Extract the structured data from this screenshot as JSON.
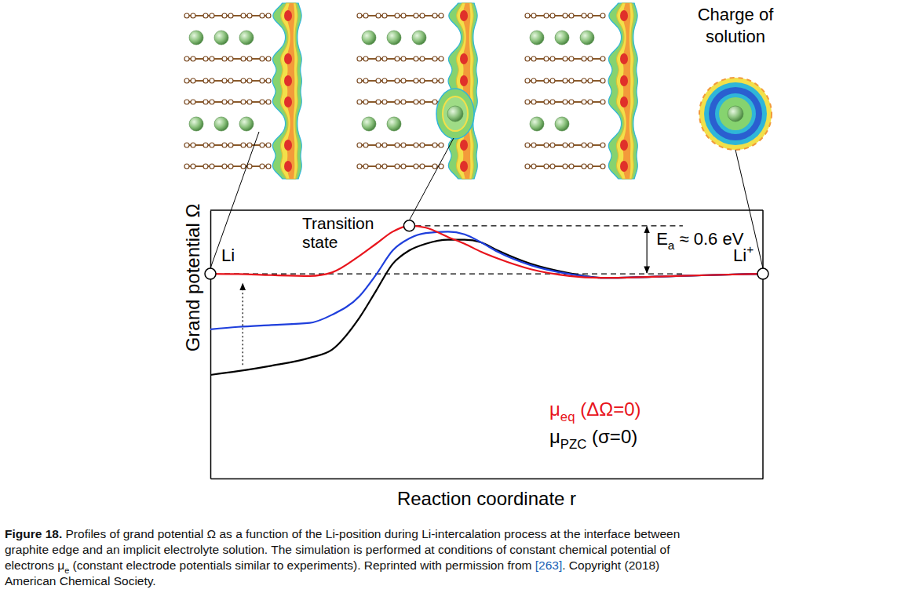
{
  "chart_data": {
    "type": "line",
    "x_label": "Reaction coordinate r",
    "y_label": "Grand potential Ω",
    "xlim": [
      0,
      1
    ],
    "ylim": [
      0,
      1
    ],
    "tick_labels": false,
    "grid": false,
    "legend": "lower right",
    "x": [
      0,
      0.05,
      0.11,
      0.18,
      0.22,
      0.27,
      0.3,
      0.33,
      0.36,
      0.39,
      0.43,
      0.46,
      0.49,
      0.52,
      0.58,
      0.65,
      0.71,
      0.8,
      0.9,
      1
    ],
    "series": [
      {
        "name": [
          "μ",
          {
            "sub": "eq"
          },
          " (ΔΩ=0)"
        ],
        "color": "#e8141c",
        "values": [
          0.763,
          0.762,
          0.758,
          0.755,
          0.768,
          0.83,
          0.875,
          0.92,
          0.942,
          0.935,
          0.9,
          0.875,
          0.845,
          0.82,
          0.78,
          0.755,
          0.748,
          0.752,
          0.758,
          0.763
        ]
      },
      {
        "color": "#1f3fdc",
        "values": [
          0.556,
          0.565,
          0.572,
          0.58,
          0.61,
          0.68,
          0.76,
          0.85,
          0.895,
          0.915,
          0.92,
          0.91,
          0.88,
          0.845,
          0.795,
          0.762,
          0.748,
          0.752,
          0.758,
          0.763
        ]
      },
      {
        "name": [
          "μ",
          {
            "sub": "PZC"
          },
          " (σ=0)"
        ],
        "color": "#000000",
        "values": [
          0.386,
          0.4,
          0.42,
          0.45,
          0.48,
          0.6,
          0.7,
          0.8,
          0.85,
          0.875,
          0.89,
          0.89,
          0.88,
          0.85,
          0.8,
          0.765,
          0.748,
          0.752,
          0.758,
          0.763
        ]
      }
    ],
    "energy_levels": [
      0.763,
      0.942
    ],
    "annotations": {
      "initial": "Li",
      "transition": "Transition state",
      "final": [
        "Li",
        {
          "sup": "+"
        }
      ],
      "barrier": [
        "E",
        {
          "sub": "a"
        },
        " ≈ 0.6 eV"
      ]
    }
  },
  "illustration": {
    "solution_label": "Charge of solution"
  },
  "figure_caption": {
    "lines": [
      [
        {
          "bold": "Figure 18."
        },
        " Profiles of grand potential Ω as a function of the Li-position during Li-intercalation process at the interface between"
      ],
      [
        "graphite edge and an implicit electrolyte solution. The simulation is performed at conditions of constant chemical potential of"
      ],
      [
        "electrons μ",
        {
          "sub": "e"
        },
        " (constant electrode potentials similar to experiments). Reprinted with permission from ",
        {
          "link": "[263]"
        },
        ". Copyright (2018)"
      ],
      [
        "American Chemical Society."
      ]
    ]
  }
}
